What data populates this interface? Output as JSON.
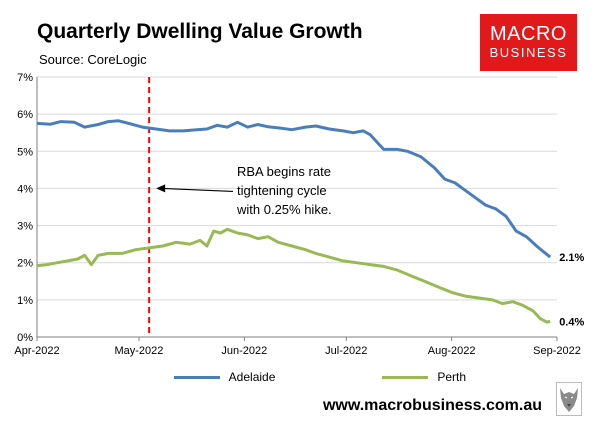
{
  "header": {
    "title": "Quarterly Dwelling Value Growth",
    "subtitle": "Source: CoreLogic"
  },
  "logo": {
    "line1": "MACRO",
    "line2": "BUSINESS"
  },
  "footer": {
    "website": "www.macrobusiness.com.au"
  },
  "colors": {
    "adelaide": "#4a7ebb",
    "perth": "#98b954",
    "rba_line": "#ff0000",
    "brand": "#e2191a"
  },
  "icons": {
    "footer_logo": "wolf-icon"
  },
  "chart_data": {
    "type": "line",
    "title": "Quarterly Dwelling Value Growth",
    "source": "Source: CoreLogic",
    "xlabel": "",
    "ylabel": "",
    "x_ticks": [
      "Apr-2022",
      "May-2022",
      "Jun-2022",
      "Jul-2022",
      "Aug-2022",
      "Sep-2022"
    ],
    "y_ticks": [
      "0%",
      "1%",
      "2%",
      "3%",
      "4%",
      "5%",
      "6%",
      "7%"
    ],
    "xlim": [
      "2022-04-01",
      "2022-09-01"
    ],
    "ylim": [
      0,
      7
    ],
    "grid": "horizontal",
    "legend_position": "bottom",
    "series": [
      {
        "name": "Adelaide",
        "color": "#4a7ebb",
        "end_label": "2.1%",
        "points": [
          [
            "2022-04-01",
            5.75
          ],
          [
            "2022-04-05",
            5.73
          ],
          [
            "2022-04-08",
            5.8
          ],
          [
            "2022-04-12",
            5.78
          ],
          [
            "2022-04-15",
            5.65
          ],
          [
            "2022-04-19",
            5.72
          ],
          [
            "2022-04-22",
            5.8
          ],
          [
            "2022-04-25",
            5.82
          ],
          [
            "2022-04-28",
            5.75
          ],
          [
            "2022-05-02",
            5.65
          ],
          [
            "2022-05-06",
            5.6
          ],
          [
            "2022-05-10",
            5.55
          ],
          [
            "2022-05-14",
            5.55
          ],
          [
            "2022-05-18",
            5.58
          ],
          [
            "2022-05-21",
            5.6
          ],
          [
            "2022-05-24",
            5.7
          ],
          [
            "2022-05-27",
            5.65
          ],
          [
            "2022-05-30",
            5.78
          ],
          [
            "2022-06-02",
            5.65
          ],
          [
            "2022-06-05",
            5.72
          ],
          [
            "2022-06-08",
            5.66
          ],
          [
            "2022-06-12",
            5.62
          ],
          [
            "2022-06-15",
            5.58
          ],
          [
            "2022-06-19",
            5.65
          ],
          [
            "2022-06-22",
            5.68
          ],
          [
            "2022-06-26",
            5.6
          ],
          [
            "2022-06-30",
            5.55
          ],
          [
            "2022-07-03",
            5.5
          ],
          [
            "2022-07-06",
            5.55
          ],
          [
            "2022-07-08",
            5.45
          ],
          [
            "2022-07-10",
            5.25
          ],
          [
            "2022-07-12",
            5.05
          ],
          [
            "2022-07-16",
            5.05
          ],
          [
            "2022-07-19",
            5.0
          ],
          [
            "2022-07-23",
            4.85
          ],
          [
            "2022-07-27",
            4.55
          ],
          [
            "2022-07-30",
            4.25
          ],
          [
            "2022-08-02",
            4.15
          ],
          [
            "2022-08-05",
            3.95
          ],
          [
            "2022-08-08",
            3.75
          ],
          [
            "2022-08-11",
            3.55
          ],
          [
            "2022-08-14",
            3.45
          ],
          [
            "2022-08-17",
            3.25
          ],
          [
            "2022-08-20",
            2.85
          ],
          [
            "2022-08-23",
            2.7
          ],
          [
            "2022-08-26",
            2.45
          ],
          [
            "2022-08-28",
            2.3
          ],
          [
            "2022-08-30",
            2.15
          ]
        ]
      },
      {
        "name": "Perth",
        "color": "#98b954",
        "end_label": "0.4%",
        "points": [
          [
            "2022-04-01",
            1.92
          ],
          [
            "2022-04-04",
            1.95
          ],
          [
            "2022-04-07",
            2.0
          ],
          [
            "2022-04-10",
            2.05
          ],
          [
            "2022-04-13",
            2.1
          ],
          [
            "2022-04-15",
            2.2
          ],
          [
            "2022-04-17",
            1.95
          ],
          [
            "2022-04-19",
            2.2
          ],
          [
            "2022-04-22",
            2.25
          ],
          [
            "2022-04-26",
            2.25
          ],
          [
            "2022-04-30",
            2.35
          ],
          [
            "2022-05-04",
            2.4
          ],
          [
            "2022-05-08",
            2.45
          ],
          [
            "2022-05-12",
            2.55
          ],
          [
            "2022-05-16",
            2.5
          ],
          [
            "2022-05-19",
            2.6
          ],
          [
            "2022-05-21",
            2.45
          ],
          [
            "2022-05-23",
            2.85
          ],
          [
            "2022-05-25",
            2.8
          ],
          [
            "2022-05-27",
            2.9
          ],
          [
            "2022-05-30",
            2.8
          ],
          [
            "2022-06-02",
            2.75
          ],
          [
            "2022-06-05",
            2.65
          ],
          [
            "2022-06-08",
            2.7
          ],
          [
            "2022-06-11",
            2.55
          ],
          [
            "2022-06-15",
            2.45
          ],
          [
            "2022-06-19",
            2.35
          ],
          [
            "2022-06-22",
            2.25
          ],
          [
            "2022-06-26",
            2.15
          ],
          [
            "2022-06-30",
            2.05
          ],
          [
            "2022-07-04",
            2.0
          ],
          [
            "2022-07-08",
            1.95
          ],
          [
            "2022-07-12",
            1.9
          ],
          [
            "2022-07-16",
            1.8
          ],
          [
            "2022-07-20",
            1.65
          ],
          [
            "2022-07-24",
            1.5
          ],
          [
            "2022-07-28",
            1.35
          ],
          [
            "2022-08-01",
            1.2
          ],
          [
            "2022-08-05",
            1.1
          ],
          [
            "2022-08-09",
            1.05
          ],
          [
            "2022-08-13",
            1.0
          ],
          [
            "2022-08-16",
            0.9
          ],
          [
            "2022-08-19",
            0.95
          ],
          [
            "2022-08-22",
            0.85
          ],
          [
            "2022-08-25",
            0.7
          ],
          [
            "2022-08-27",
            0.5
          ],
          [
            "2022-08-29",
            0.4
          ],
          [
            "2022-08-30",
            0.42
          ]
        ]
      }
    ],
    "reference_line": {
      "x": "2022-05-04",
      "color": "#ff0000",
      "style": "dashed"
    },
    "annotation": {
      "lines": [
        "RBA begins rate",
        "tightening cycle",
        "with 0.25% hike."
      ],
      "arrow_target": {
        "x": "2022-05-04",
        "y": 4.0
      }
    }
  }
}
